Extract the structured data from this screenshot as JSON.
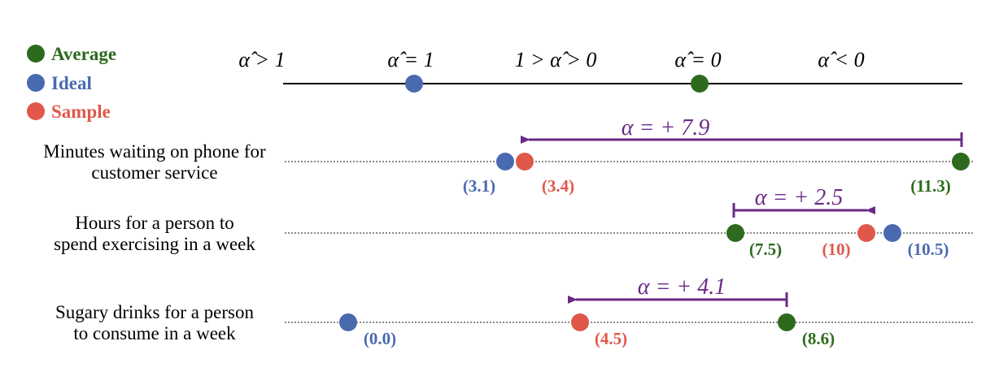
{
  "colors": {
    "average": "#2e6a1e",
    "ideal": "#4a6ab0",
    "sample": "#e0584a",
    "arrow": "#6a2a86"
  },
  "legend": [
    {
      "key": "average",
      "label": "Average"
    },
    {
      "key": "ideal",
      "label": "Ideal"
    },
    {
      "key": "sample",
      "label": "Sample"
    }
  ],
  "scale": {
    "labels": [
      "α̂ > 1",
      "α̂ = 1",
      "1 > α̂ > 0",
      "α̂ = 0",
      "α̂ < 0"
    ],
    "markers": [
      "ideal",
      "average"
    ]
  },
  "rows": [
    {
      "label_lines": [
        "Minutes waiting on phone for",
        "customer service"
      ],
      "points": [
        {
          "key": "ideal",
          "value": "3.1",
          "text": "(3.1)"
        },
        {
          "key": "sample",
          "value": "3.4",
          "text": "(3.4)"
        },
        {
          "key": "average",
          "value": "11.3",
          "text": "(11.3)"
        }
      ],
      "alpha": "α = + 7.9"
    },
    {
      "label_lines": [
        "Hours for a person to",
        "spend exercising in a week"
      ],
      "points": [
        {
          "key": "average",
          "value": "7.5",
          "text": "(7.5)"
        },
        {
          "key": "sample",
          "value": "10",
          "text": "(10)"
        },
        {
          "key": "ideal",
          "value": "10.5",
          "text": "(10.5)"
        }
      ],
      "alpha": "α = + 2.5"
    },
    {
      "label_lines": [
        "Sugary drinks for a person",
        "to consume in a week"
      ],
      "points": [
        {
          "key": "ideal",
          "value": "0.0",
          "text": "(0.0)"
        },
        {
          "key": "sample",
          "value": "4.5",
          "text": "(4.5)"
        },
        {
          "key": "average",
          "value": "8.6",
          "text": "(8.6)"
        }
      ],
      "alpha": "α = + 4.1"
    }
  ]
}
